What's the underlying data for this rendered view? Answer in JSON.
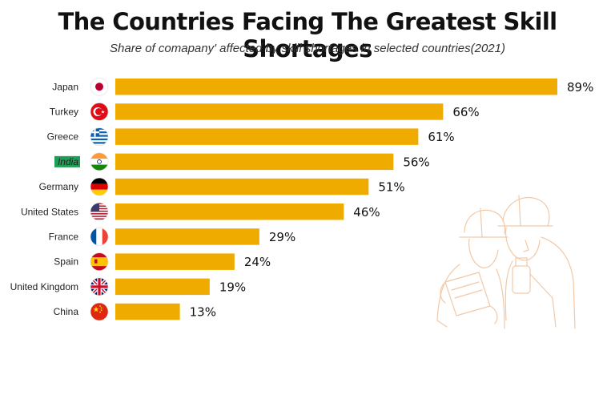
{
  "header": {
    "title": "The Countries Facing The Greatest Skill Shortages",
    "subtitle": "Share of comapany' affected by skill shortages in selected countries(2021)"
  },
  "colors": {
    "bar": "#f0ab00",
    "highlight_label_bg": "#1f9d55",
    "highlight_label_text": "#ffffff",
    "illustration": "#f2c9a8"
  },
  "highlight_category": "India",
  "chart_data": {
    "type": "bar",
    "orientation": "horizontal",
    "title": "The Countries Facing The Greatest Skill Shortages",
    "subtitle": "Share of comapany' affected by skill shortages in selected countries(2021)",
    "categories": [
      "Japan",
      "Turkey",
      "Greece",
      "India",
      "Germany",
      "United States",
      "France",
      "Spain",
      "United Kingdom",
      "China"
    ],
    "values": [
      89,
      66,
      61,
      56,
      51,
      46,
      29,
      24,
      19,
      13
    ],
    "value_labels": [
      "89%",
      "66%",
      "61%",
      "56%",
      "51%",
      "46%",
      "29%",
      "24%",
      "19%",
      "13%"
    ],
    "flag_icons": [
      "japan-flag-icon",
      "turkey-flag-icon",
      "greece-flag-icon",
      "india-flag-icon",
      "germany-flag-icon",
      "usa-flag-icon",
      "france-flag-icon",
      "spain-flag-icon",
      "uk-flag-icon",
      "china-flag-icon"
    ],
    "xlim": [
      0,
      89
    ],
    "grid": false,
    "legend": "none"
  }
}
